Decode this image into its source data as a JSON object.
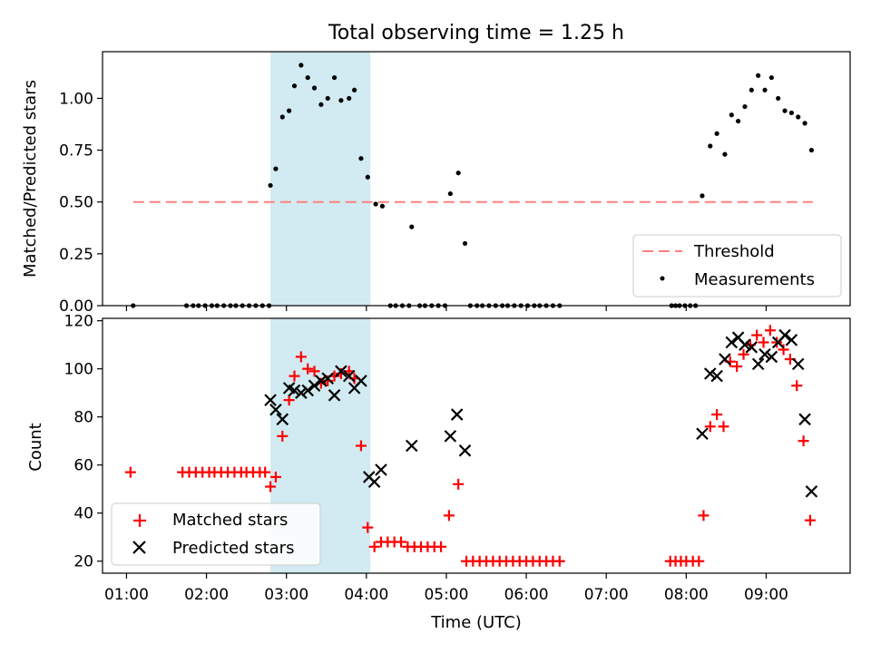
{
  "title": "Total observing time = 1.25 h",
  "chart_data": [
    {
      "type": "scatter",
      "panel": "top",
      "ylabel": "Matched/Predicted stars",
      "ylim": [
        0,
        1.225
      ],
      "yticks": [
        0.0,
        0.25,
        0.5,
        0.75,
        1.0
      ],
      "ytick_labels": [
        "0.00",
        "0.25",
        "0.50",
        "0.75",
        "1.00"
      ],
      "threshold": {
        "name": "Threshold",
        "value": 0.5,
        "x_start": 1.0833,
        "x_end": 9.5833,
        "color": "#ff8080",
        "style": "dashed"
      },
      "shaded_region": {
        "x_start": 2.8,
        "x_end": 4.05,
        "color": "#add8e6"
      },
      "legend": {
        "position": "lower right",
        "entries": [
          "Threshold",
          "Measurements"
        ]
      },
      "series": [
        {
          "name": "Measurements",
          "marker": "dot",
          "color": "#000000",
          "x": [
            1.0833,
            1.75,
            1.8333,
            1.9,
            1.9833,
            2.0667,
            2.1333,
            2.2167,
            2.3,
            2.3667,
            2.45,
            2.5333,
            2.6167,
            2.7,
            2.7833,
            2.8,
            2.8667,
            2.95,
            3.0333,
            3.1,
            3.1833,
            3.2667,
            3.35,
            3.4333,
            3.5167,
            3.6,
            3.6833,
            3.7833,
            3.85,
            3.9333,
            4.0167,
            4.1167,
            4.2,
            4.3,
            4.3667,
            4.45,
            4.5333,
            4.5667,
            4.6667,
            4.7333,
            4.8167,
            4.9,
            4.9833,
            5.05,
            5.15,
            5.2333,
            5.3,
            5.3833,
            5.45,
            5.5333,
            5.6167,
            5.7,
            5.7667,
            5.85,
            5.9333,
            6.0167,
            6.1,
            6.1667,
            6.25,
            6.3333,
            6.4167,
            7.8167,
            7.8667,
            7.9167,
            7.9833,
            8.05,
            8.1167,
            8.2,
            8.3,
            8.3833,
            8.4833,
            8.5667,
            8.65,
            8.7333,
            8.8167,
            8.9,
            8.9833,
            9.0667,
            9.15,
            9.2333,
            9.3167,
            9.4,
            9.4833,
            9.5667
          ],
          "y": [
            0.0,
            0.0,
            0.0,
            0.0,
            0.0,
            0.0,
            0.0,
            0.0,
            0.0,
            0.0,
            0.0,
            0.0,
            0.0,
            0.0,
            0.0,
            0.58,
            0.66,
            0.91,
            0.94,
            1.06,
            1.16,
            1.1,
            1.05,
            0.97,
            1.0,
            1.1,
            0.99,
            1.0,
            1.04,
            0.71,
            0.62,
            0.49,
            0.48,
            0.0,
            0.0,
            0.0,
            0.0,
            0.38,
            0.0,
            0.0,
            0.0,
            0.0,
            0.0,
            0.54,
            0.64,
            0.3,
            0.0,
            0.0,
            0.0,
            0.0,
            0.0,
            0.0,
            0.0,
            0.0,
            0.0,
            0.0,
            0.0,
            0.0,
            0.0,
            0.0,
            0.0,
            0.0,
            0.0,
            0.0,
            0.0,
            0.0,
            0.0,
            0.53,
            0.77,
            0.83,
            0.73,
            0.92,
            0.89,
            0.96,
            1.04,
            1.11,
            1.04,
            1.1,
            1.0,
            0.94,
            0.93,
            0.91,
            0.88,
            0.75
          ]
        }
      ]
    },
    {
      "type": "scatter",
      "panel": "bottom",
      "xlabel": "Time (UTC)",
      "ylabel": "Count",
      "ylim": [
        15,
        121
      ],
      "yticks": [
        20,
        40,
        60,
        80,
        100,
        120
      ],
      "ytick_labels": [
        "20",
        "40",
        "60",
        "80",
        "100",
        "120"
      ],
      "xlim": [
        0.7,
        10.05
      ],
      "xticks": [
        1,
        2,
        3,
        4,
        5,
        6,
        7,
        8,
        9
      ],
      "xtick_labels": [
        "01:00",
        "02:00",
        "03:00",
        "04:00",
        "05:00",
        "06:00",
        "07:00",
        "08:00",
        "09:00"
      ],
      "shaded_region": {
        "x_start": 2.8,
        "x_end": 4.05,
        "color": "#add8e6"
      },
      "legend": {
        "position": "lower left",
        "entries": [
          "Matched stars",
          "Predicted stars"
        ]
      },
      "series": [
        {
          "name": "Matched stars",
          "marker": "+",
          "color": "#ff0000",
          "x": [
            1.05,
            1.7,
            1.7833,
            1.8667,
            1.95,
            2.0333,
            2.1,
            2.1833,
            2.2667,
            2.35,
            2.4333,
            2.5,
            2.5833,
            2.6667,
            2.7333,
            2.8,
            2.8667,
            2.95,
            3.0333,
            3.1,
            3.1833,
            3.2667,
            3.35,
            3.4333,
            3.5167,
            3.6,
            3.6833,
            3.7833,
            3.85,
            3.9333,
            4.0167,
            4.1,
            4.1833,
            4.2667,
            4.35,
            4.4333,
            4.5167,
            4.6,
            4.6833,
            4.7667,
            4.85,
            4.9333,
            5.0333,
            5.15,
            5.25,
            5.3333,
            5.4167,
            5.5,
            5.5833,
            5.6667,
            5.75,
            5.8333,
            5.9167,
            6.0,
            6.0833,
            6.1667,
            6.25,
            6.3333,
            6.4167,
            7.8,
            7.8667,
            7.9333,
            8.0,
            8.0833,
            8.1583,
            8.2167,
            8.3,
            8.3833,
            8.4667,
            8.55,
            8.6333,
            8.7167,
            8.8,
            8.8833,
            8.9667,
            9.05,
            9.1333,
            9.2167,
            9.3,
            9.3833,
            9.4667,
            9.55
          ],
          "y": [
            57,
            57,
            57,
            57,
            57,
            57,
            57,
            57,
            57,
            57,
            57,
            57,
            57,
            57,
            57,
            51,
            55,
            72,
            87,
            97,
            105,
            100,
            99,
            94,
            95,
            97,
            98,
            99,
            96,
            68,
            34,
            26,
            28,
            28,
            28,
            28,
            26,
            26,
            26,
            26,
            26,
            26,
            39,
            52,
            20,
            20,
            20,
            20,
            20,
            20,
            20,
            20,
            20,
            20,
            20,
            20,
            20,
            20,
            20,
            20,
            20,
            20,
            20,
            20,
            20,
            39,
            76,
            81,
            76,
            103,
            101,
            106,
            110,
            114,
            111,
            116,
            111,
            108,
            104,
            93,
            70,
            37
          ]
        },
        {
          "name": "Predicted stars",
          "marker": "x",
          "color": "#000000",
          "x": [
            2.8,
            2.8667,
            2.95,
            3.0333,
            3.1,
            3.1833,
            3.2667,
            3.35,
            3.4333,
            3.5167,
            3.6,
            3.6833,
            3.7833,
            3.85,
            3.9333,
            4.0333,
            4.1,
            4.1833,
            4.5667,
            5.05,
            5.1333,
            5.2333,
            8.2,
            8.3,
            8.3833,
            8.4833,
            8.5667,
            8.65,
            8.7333,
            8.8167,
            8.9,
            8.9833,
            9.0667,
            9.15,
            9.2333,
            9.3167,
            9.4,
            9.4833,
            9.5667
          ],
          "y": [
            87,
            83,
            79,
            92,
            91,
            90,
            91,
            93,
            95,
            96,
            89,
            99,
            97,
            92,
            95,
            55,
            53,
            58,
            68,
            72,
            81,
            66,
            73,
            98,
            97,
            104,
            111,
            113,
            110,
            109,
            102,
            106,
            105,
            111,
            114,
            112,
            102,
            79,
            49
          ]
        }
      ]
    }
  ]
}
